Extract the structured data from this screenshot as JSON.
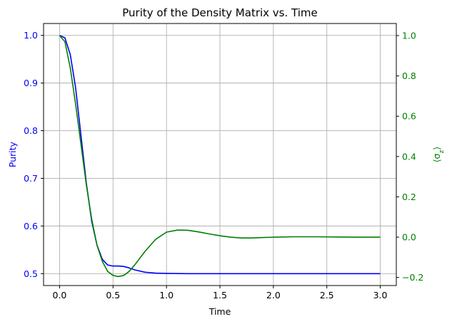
{
  "chart_data": {
    "type": "line",
    "title": "Purity of the Density Matrix vs. Time",
    "xlabel": "Time",
    "ylabel": "Purity",
    "y2label": "⟨σ_z⟩",
    "xlim": [
      -0.15,
      3.15
    ],
    "ylim": [
      0.475,
      1.025
    ],
    "y2lim": [
      -0.24,
      1.06
    ],
    "x_ticks": [
      0.0,
      0.5,
      1.0,
      1.5,
      2.0,
      2.5,
      3.0
    ],
    "x_tick_labels": [
      "0.0",
      "0.5",
      "1.0",
      "1.5",
      "2.0",
      "2.5",
      "3.0"
    ],
    "y_ticks": [
      0.5,
      0.6,
      0.7,
      0.8,
      0.9,
      1.0
    ],
    "y_tick_labels": [
      "0.5",
      "0.6",
      "0.7",
      "0.8",
      "0.9",
      "1.0"
    ],
    "y2_ticks": [
      -0.2,
      0.0,
      0.2,
      0.4,
      0.6,
      0.8,
      1.0
    ],
    "y2_tick_labels": [
      "−0.2",
      "0.0",
      "0.2",
      "0.4",
      "0.6",
      "0.8",
      "1.0"
    ],
    "grid": true,
    "colors": {
      "purity": "#0000ff",
      "sigma_z": "#008000",
      "grid": "#b0b0b0",
      "axes": "#000000"
    },
    "series": [
      {
        "axis": "left",
        "x": [
          0.0,
          0.05,
          0.1,
          0.15,
          0.2,
          0.25,
          0.3,
          0.35,
          0.4,
          0.45,
          0.5,
          0.55,
          0.6,
          0.65,
          0.7,
          0.8,
          0.9,
          1.0,
          1.2,
          1.5,
          2.0,
          2.5,
          3.0
        ],
        "values": [
          1.0,
          0.995,
          0.96,
          0.89,
          0.79,
          0.69,
          0.61,
          0.56,
          0.53,
          0.518,
          0.516,
          0.516,
          0.515,
          0.512,
          0.508,
          0.503,
          0.501,
          0.5005,
          0.5,
          0.5,
          0.5,
          0.5,
          0.5
        ]
      },
      {
        "axis": "right",
        "x": [
          0.0,
          0.05,
          0.1,
          0.15,
          0.2,
          0.25,
          0.3,
          0.35,
          0.4,
          0.45,
          0.5,
          0.55,
          0.6,
          0.65,
          0.7,
          0.8,
          0.9,
          1.0,
          1.1,
          1.15,
          1.2,
          1.3,
          1.4,
          1.5,
          1.6,
          1.7,
          1.8,
          1.9,
          2.0,
          2.2,
          2.4,
          2.6,
          2.8,
          3.0
        ],
        "values": [
          1.0,
          0.97,
          0.84,
          0.66,
          0.46,
          0.26,
          0.09,
          -0.04,
          -0.12,
          -0.17,
          -0.19,
          -0.195,
          -0.19,
          -0.17,
          -0.14,
          -0.07,
          -0.01,
          0.025,
          0.035,
          0.035,
          0.034,
          0.026,
          0.016,
          0.007,
          0.0,
          -0.004,
          -0.004,
          -0.002,
          0.0,
          0.002,
          0.002,
          0.001,
          0.0,
          0.0
        ]
      }
    ]
  }
}
